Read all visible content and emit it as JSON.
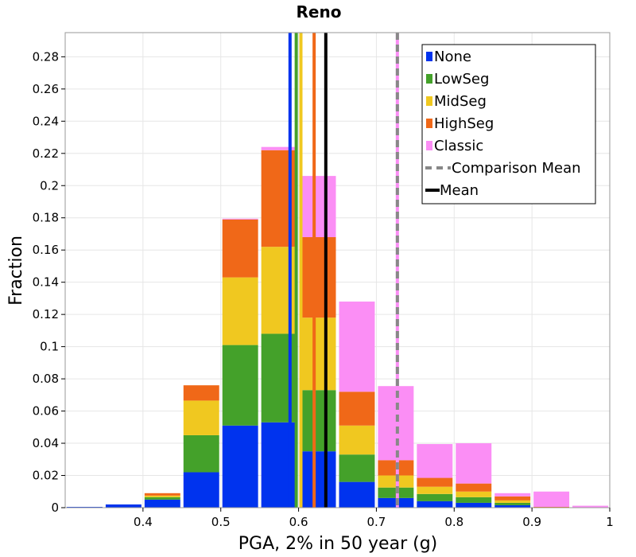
{
  "chart_data": {
    "type": "bar",
    "stacked": true,
    "title": "Reno",
    "xlabel": "PGA, 2% in 50 year (g)",
    "ylabel": "Fraction",
    "xlim": [
      0.3,
      1.0
    ],
    "ylim": [
      0,
      0.295
    ],
    "bin_width": 0.05,
    "grid": true,
    "legend_position": "top-right",
    "x_ticks": [
      {
        "value": 0.4,
        "label": "0.4"
      },
      {
        "value": 0.5,
        "label": "0.5"
      },
      {
        "value": 0.6,
        "label": "0.6"
      },
      {
        "value": 0.7,
        "label": "0.7"
      },
      {
        "value": 0.8,
        "label": "0.8"
      },
      {
        "value": 0.9,
        "label": "0.9"
      },
      {
        "value": 1.0,
        "label": "1"
      }
    ],
    "y_ticks": [
      {
        "value": 0,
        "label": "0"
      },
      {
        "value": 0.02,
        "label": "0.02"
      },
      {
        "value": 0.04,
        "label": "0.04"
      },
      {
        "value": 0.06,
        "label": "0.06"
      },
      {
        "value": 0.08,
        "label": "0.08"
      },
      {
        "value": 0.1,
        "label": "0.1"
      },
      {
        "value": 0.12,
        "label": "0.12"
      },
      {
        "value": 0.14,
        "label": "0.14"
      },
      {
        "value": 0.16,
        "label": "0.16"
      },
      {
        "value": 0.18,
        "label": "0.18"
      },
      {
        "value": 0.2,
        "label": "0.2"
      },
      {
        "value": 0.22,
        "label": "0.22"
      },
      {
        "value": 0.24,
        "label": "0.24"
      },
      {
        "value": 0.26,
        "label": "0.26"
      },
      {
        "value": 0.28,
        "label": "0.28"
      }
    ],
    "bin_starts": [
      0.3,
      0.35,
      0.4,
      0.45,
      0.5,
      0.55,
      0.6,
      0.65,
      0.7,
      0.75,
      0.8,
      0.85,
      0.9,
      0.95
    ],
    "series": [
      {
        "name": "None",
        "color": "#0033ee",
        "values": [
          0.0005,
          0.002,
          0.005,
          0.022,
          0.051,
          0.053,
          0.035,
          0.016,
          0.006,
          0.004,
          0.003,
          0.0015,
          0.0,
          0.0
        ]
      },
      {
        "name": "LowSeg",
        "color": "#44a12a",
        "values": [
          0.0,
          0.0,
          0.0015,
          0.023,
          0.05,
          0.055,
          0.038,
          0.017,
          0.0065,
          0.0045,
          0.0035,
          0.0015,
          0.0,
          0.0
        ]
      },
      {
        "name": "MidSeg",
        "color": "#f0c820",
        "values": [
          0.0,
          0.0,
          0.001,
          0.0215,
          0.042,
          0.054,
          0.045,
          0.018,
          0.0075,
          0.0045,
          0.0035,
          0.0015,
          0.0,
          0.0
        ]
      },
      {
        "name": "HighSeg",
        "color": "#f06818",
        "values": [
          0.0,
          0.0,
          0.0015,
          0.0095,
          0.036,
          0.06,
          0.05,
          0.021,
          0.0095,
          0.0055,
          0.005,
          0.0025,
          0.0005,
          0.0
        ]
      },
      {
        "name": "Classic",
        "color": "#fb8ef5",
        "values": [
          0.0,
          0.0,
          0.0,
          0.0,
          0.0005,
          0.002,
          0.038,
          0.056,
          0.046,
          0.021,
          0.025,
          0.002,
          0.0095,
          0.0012
        ]
      }
    ],
    "mean_lines": [
      {
        "series": "None",
        "color": "#0033ee",
        "x": 0.589,
        "style": "solid"
      },
      {
        "series": "LowSeg",
        "color": "#44a12a",
        "x": 0.597,
        "style": "solid"
      },
      {
        "series": "MidSeg",
        "color": "#f0c820",
        "x": 0.603,
        "style": "solid"
      },
      {
        "series": "HighSeg",
        "color": "#f06818",
        "x": 0.62,
        "style": "solid"
      },
      {
        "series": "Classic",
        "color": "#fb8ef5",
        "x": 0.727,
        "style": "solid"
      },
      {
        "series": "Comparison Mean",
        "color": "#888888",
        "x": 0.727,
        "style": "dashed"
      },
      {
        "series": "Mean",
        "color": "#000000",
        "x": 0.635,
        "style": "solid"
      }
    ],
    "legend": [
      {
        "label": "None",
        "color": "#0033ee",
        "kind": "box"
      },
      {
        "label": "LowSeg",
        "color": "#44a12a",
        "kind": "box"
      },
      {
        "label": "MidSeg",
        "color": "#f0c820",
        "kind": "box"
      },
      {
        "label": "HighSeg",
        "color": "#f06818",
        "kind": "box"
      },
      {
        "label": "Classic",
        "color": "#fb8ef5",
        "kind": "box"
      },
      {
        "label": "Comparison Mean",
        "color": "#888888",
        "kind": "dashed"
      },
      {
        "label": "Mean",
        "color": "#000000",
        "kind": "line"
      }
    ]
  }
}
